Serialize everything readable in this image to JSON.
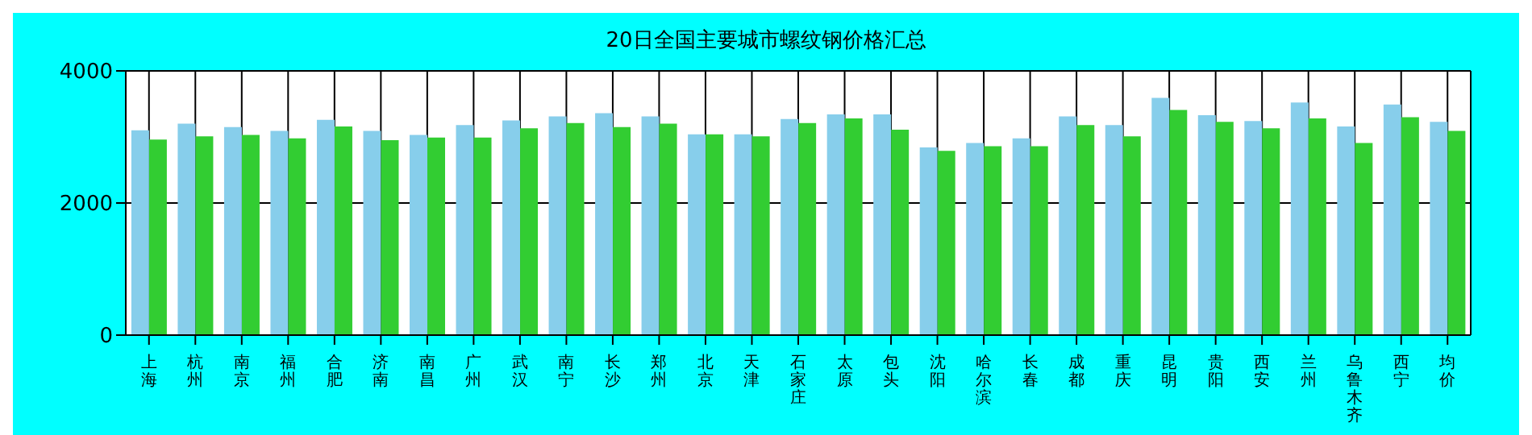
{
  "chart_data": {
    "type": "bar",
    "title": "20日全国主要城市螺纹钢价格汇总",
    "categories": [
      "上海",
      "杭州",
      "南京",
      "福州",
      "合肥",
      "济南",
      "南昌",
      "广州",
      "武汉",
      "南宁",
      "长沙",
      "郑州",
      "北京",
      "天津",
      "石家庄",
      "太原",
      "包头",
      "沈阳",
      "哈尔滨",
      "长春",
      "成都",
      "重庆",
      "昆明",
      "贵阳",
      "西安",
      "兰州",
      "乌鲁木齐",
      "西宁",
      "均价"
    ],
    "series": [
      {
        "color": "#87ceeb",
        "values": [
          3100,
          3200,
          3150,
          3090,
          3260,
          3090,
          3030,
          3180,
          3250,
          3310,
          3360,
          3310,
          3040,
          3040,
          3270,
          3340,
          3340,
          2840,
          2910,
          2980,
          3310,
          3180,
          3590,
          3330,
          3240,
          3520,
          3160,
          3490,
          3230
        ]
      },
      {
        "color": "#32cd32",
        "values": [
          2960,
          3010,
          3030,
          2980,
          3160,
          2950,
          2990,
          2990,
          3130,
          3210,
          3150,
          3200,
          3040,
          3010,
          3210,
          3280,
          3110,
          2790,
          2860,
          2860,
          3180,
          3010,
          3410,
          3230,
          3130,
          3280,
          2910,
          3300,
          3090
        ]
      }
    ],
    "ylim": [
      0,
      4000
    ],
    "yticks": [
      0,
      2000,
      4000
    ],
    "grid": true
  }
}
